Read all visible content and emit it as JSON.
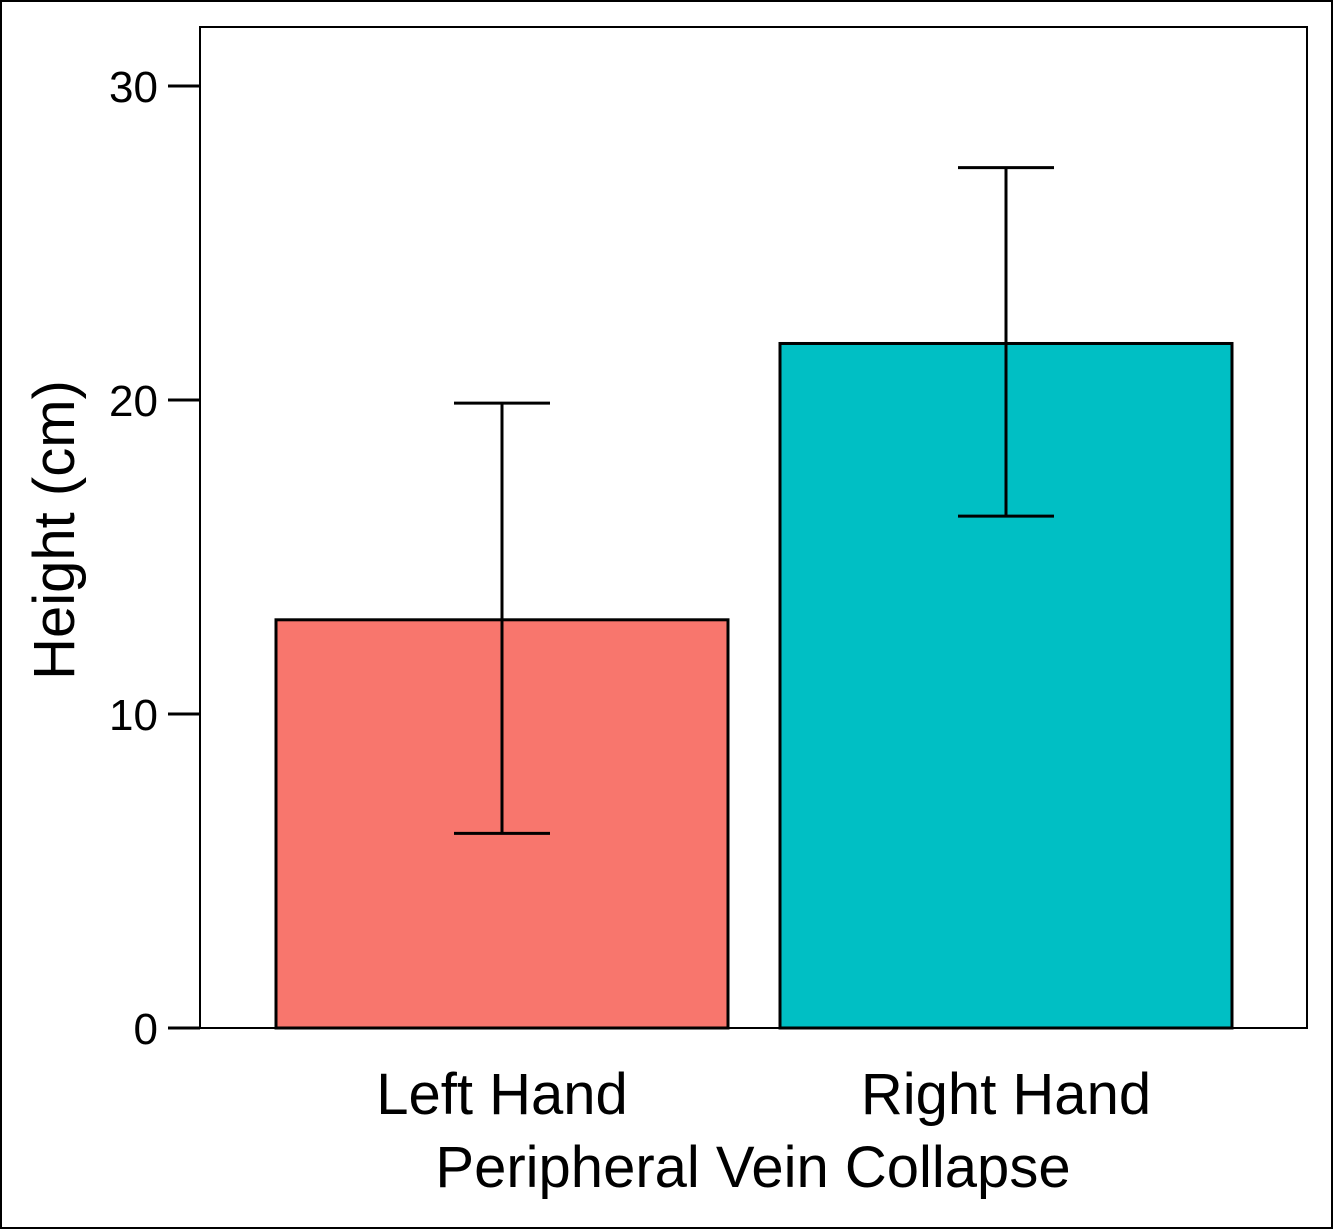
{
  "chart_data": {
    "type": "bar",
    "title": "",
    "xlabel": "Peripheral Vein Collapse",
    "ylabel": "Height (cm)",
    "categories": [
      "Left Hand",
      "Right Hand"
    ],
    "values": [
      13.0,
      21.8
    ],
    "error_low": [
      6.2,
      16.3
    ],
    "error_high": [
      19.9,
      27.4
    ],
    "colors": [
      "#F8766D",
      "#00BFC4"
    ],
    "ylim": [
      0,
      32
    ],
    "yticks": [
      0,
      10,
      20,
      30
    ],
    "ytick_labels": [
      "0",
      "10",
      "20",
      "30"
    ],
    "grid": false,
    "legend": "none"
  }
}
